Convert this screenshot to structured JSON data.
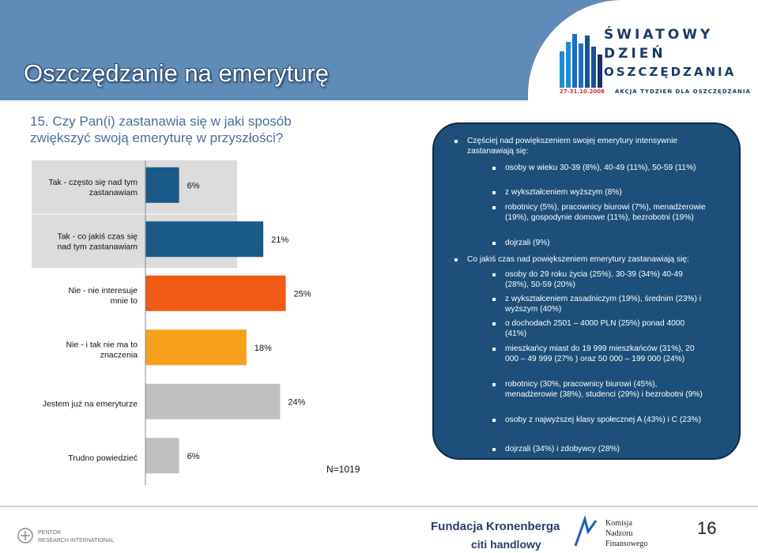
{
  "slide": {
    "title": "Oszczędzanie na emeryturę",
    "question": "15. Czy Pan(i) zastanawia się w jaki sposób zwiększyć swoją emeryturę w przyszłości?",
    "n_label": "N=1019",
    "page_number": "16"
  },
  "logo": {
    "line1": "ŚWIATOWY",
    "line2": "DZIEŃ",
    "line3": "OSZCZĘDZANIA",
    "tagline_date": "27-31.10.2008",
    "tagline": "AKCJA TYDZIEŃ DLA OSZCZĘDZANIA"
  },
  "footer": {
    "pentor": "PENTOR RESEARCH INTERNATIONAL",
    "kronenberg": "Fundacja Kronenberga",
    "citi": "citi handlowy",
    "knf_line1": "Komisja",
    "knf_line2": "Nadzoru",
    "knf_line3": "Finansowego"
  },
  "panel": {
    "intro1": "Częściej nad powiększeniem swojej emerytury intensywnie zastanawiają się:",
    "sub1": [
      "osoby w wieku 30-39 (8%), 40-49 (11%), 50-59 (11%)",
      "z wykształceniem wyższym (8%)",
      "robotnicy (5%), pracownicy biurowi (7%), menadżerowie (19%), gospodynie domowe (11%), bezrobotni (19%)",
      "dojrzali (9%)"
    ],
    "intro2": "Co jakiś czas nad powiększeniem emerytury zastanawiają się:",
    "sub2": [
      "osoby do 29 roku życia (25%), 30-39 (34%) 40-49 (28%), 50-59 (20%)",
      "z wykształceniem zasadniczym (19%), średnim (23%) i wyższym (40%)",
      "o dochodach 2501 – 4000 PLN (25%) ponad 4000 (41%)",
      "mieszkańcy miast do 19 999 mieszkańców (31%), 20 000 – 49 999 (27% ) oraz 50 000 – 199 000 (24%)",
      "robotnicy (30%, pracownicy biurowi (45%), menadżerowie (38%), studenci (29%) i bezrobotni (9%)",
      "osoby z najwyższej klasy społecznej A (43%) i C (23%)",
      "dojrzali (34%) i zdobywcy (28%)"
    ]
  },
  "colors": {
    "banner": "#5f8bb7",
    "panel": "#1d4f7a",
    "bar_blue": "#1a5a87",
    "bar_red": "#f05a14",
    "bar_orange": "#f7a01c",
    "bar_gray": "#c0c0c0"
  },
  "chart_data": {
    "type": "bar",
    "orientation": "horizontal",
    "categories": [
      "Tak - często się nad tym zastanawiam",
      "Tak - co jakiś czas się nad tym zastanawiam",
      "Nie - nie interesuje mnie to",
      "Nie - i tak nie ma to znaczenia",
      "Jestem już na emeryturze",
      "Trudno powiedzieć"
    ],
    "values": [
      6,
      21,
      25,
      18,
      24,
      6
    ],
    "value_labels": [
      "6%",
      "21%",
      "25%",
      "18%",
      "24%",
      "6%"
    ],
    "bar_colors": [
      "#1a5a87",
      "#1a5a87",
      "#f05a14",
      "#f7a01c",
      "#c0c0c0",
      "#c0c0c0"
    ],
    "label_backgrounds": [
      "#dcdcdc",
      "#dcdcdc",
      "#ffffff",
      "#ffffff",
      "#ffffff",
      "#ffffff"
    ],
    "unit": "%",
    "xlim": [
      0,
      30
    ],
    "grid": false
  }
}
